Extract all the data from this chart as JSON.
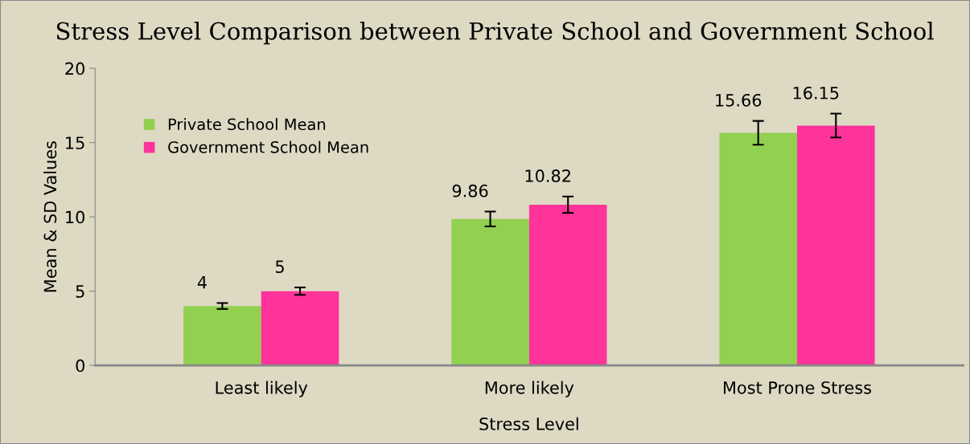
{
  "chart_data": {
    "type": "bar",
    "title": "Stress Level Comparison between Private School and Government School",
    "xlabel": "Stress Level",
    "ylabel": "Mean & SD Values",
    "categories": [
      "Least likely",
      "More likely",
      "Most Prone Stress"
    ],
    "series": [
      {
        "name": "Private School Mean",
        "color": "#92d050",
        "values": [
          4,
          9.86,
          15.66
        ],
        "errors": [
          0.2,
          0.5,
          0.8
        ]
      },
      {
        "name": "Government School Mean",
        "color": "#ff3399",
        "values": [
          5,
          10.82,
          16.15
        ],
        "errors": [
          0.25,
          0.55,
          0.8
        ]
      }
    ],
    "ylim": [
      0,
      20
    ],
    "yticks": [
      0,
      5,
      10,
      15,
      20
    ],
    "grid": false,
    "legend": "top left",
    "data_labels": true
  }
}
